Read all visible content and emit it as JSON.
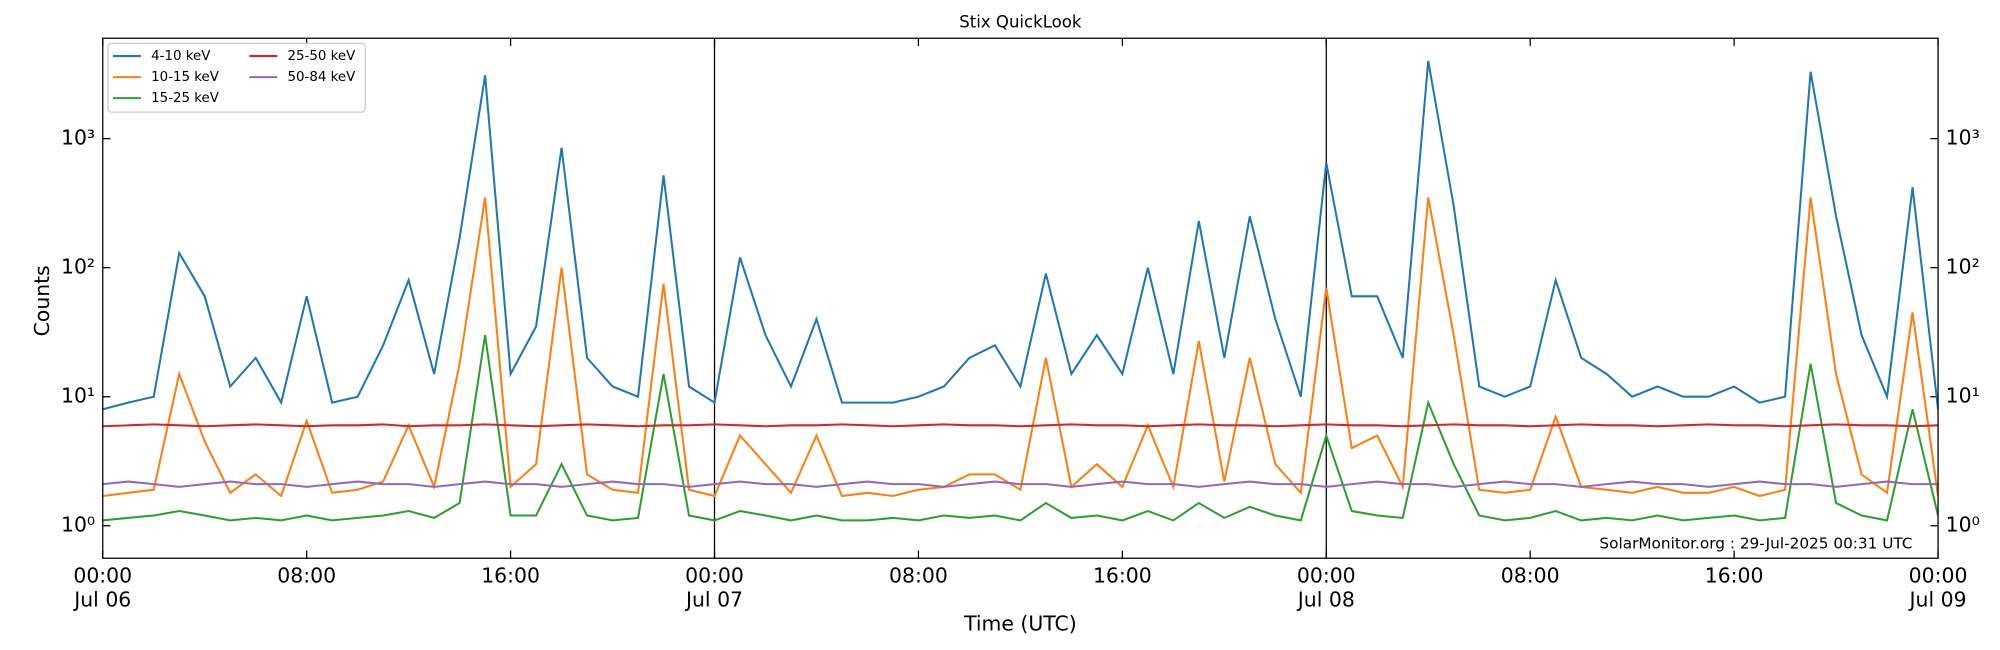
{
  "chart_data": {
    "type": "line",
    "title": "Stix QuickLook",
    "xlabel": "Time (UTC)",
    "ylabel": "Counts",
    "annotation": "SolarMonitor.org : 29-Jul-2025 00:31 UTC",
    "log_y": true,
    "grid": false,
    "legend": "upper left",
    "legend_columns": 2,
    "x": [
      "Jul 06 00:00",
      "Jul 06 01:00",
      "Jul 06 02:00",
      "Jul 06 03:00",
      "Jul 06 04:00",
      "Jul 06 05:00",
      "Jul 06 06:00",
      "Jul 06 07:00",
      "Jul 06 08:00",
      "Jul 06 09:00",
      "Jul 06 10:00",
      "Jul 06 11:00",
      "Jul 06 12:00",
      "Jul 06 13:00",
      "Jul 06 14:00",
      "Jul 06 15:00",
      "Jul 06 16:00",
      "Jul 06 17:00",
      "Jul 06 18:00",
      "Jul 06 19:00",
      "Jul 06 20:00",
      "Jul 06 21:00",
      "Jul 06 22:00",
      "Jul 06 23:00",
      "Jul 07 00:00",
      "Jul 07 01:00",
      "Jul 07 02:00",
      "Jul 07 03:00",
      "Jul 07 04:00",
      "Jul 07 05:00",
      "Jul 07 06:00",
      "Jul 07 07:00",
      "Jul 07 08:00",
      "Jul 07 09:00",
      "Jul 07 10:00",
      "Jul 07 11:00",
      "Jul 07 12:00",
      "Jul 07 13:00",
      "Jul 07 14:00",
      "Jul 07 15:00",
      "Jul 07 16:00",
      "Jul 07 17:00",
      "Jul 07 18:00",
      "Jul 07 19:00",
      "Jul 07 20:00",
      "Jul 07 21:00",
      "Jul 07 22:00",
      "Jul 07 23:00",
      "Jul 08 00:00",
      "Jul 08 01:00",
      "Jul 08 02:00",
      "Jul 08 03:00",
      "Jul 08 04:00",
      "Jul 08 05:00",
      "Jul 08 06:00",
      "Jul 08 07:00",
      "Jul 08 08:00",
      "Jul 08 09:00",
      "Jul 08 10:00",
      "Jul 08 11:00",
      "Jul 08 12:00",
      "Jul 08 13:00",
      "Jul 08 14:00",
      "Jul 08 15:00",
      "Jul 08 16:00",
      "Jul 08 17:00",
      "Jul 08 18:00",
      "Jul 08 19:00",
      "Jul 08 20:00",
      "Jul 08 21:00",
      "Jul 08 22:00",
      "Jul 08 23:00",
      "Jul 09 00:00"
    ],
    "xlim": [
      "Jul 06 00:00",
      "Jul 09 00:00"
    ],
    "xticks": [
      {
        "value": "Jul 06 00:00",
        "label": "00:00\nJul 06"
      },
      {
        "value": "Jul 06 08:00",
        "label": "08:00"
      },
      {
        "value": "Jul 06 16:00",
        "label": "16:00"
      },
      {
        "value": "Jul 07 00:00",
        "label": "00:00\nJul 07"
      },
      {
        "value": "Jul 07 08:00",
        "label": "08:00"
      },
      {
        "value": "Jul 07 16:00",
        "label": "16:00"
      },
      {
        "value": "Jul 08 00:00",
        "label": "00:00\nJul 08"
      },
      {
        "value": "Jul 08 08:00",
        "label": "08:00"
      },
      {
        "value": "Jul 08 16:00",
        "label": "16:00"
      },
      {
        "value": "Jul 09 00:00",
        "label": "00:00\nJul 09"
      }
    ],
    "ylim": [
      0.56,
      6000
    ],
    "yticks": [
      {
        "value": 1,
        "label": "10⁰"
      },
      {
        "value": 10,
        "label": "10¹"
      },
      {
        "value": 100,
        "label": "10²"
      },
      {
        "value": 1000,
        "label": "10³"
      }
    ],
    "series": [
      {
        "name": "4-10 keV",
        "color": "#1f77b4",
        "values": [
          8,
          9,
          10,
          130,
          60,
          12,
          20,
          9,
          60,
          9,
          10,
          25,
          80,
          15,
          170,
          3100,
          15,
          35,
          850,
          20,
          12,
          10,
          520,
          12,
          9,
          120,
          30,
          12,
          40,
          9,
          9,
          9,
          10,
          12,
          20,
          25,
          12,
          90,
          15,
          30,
          15,
          100,
          15,
          230,
          20,
          250,
          40,
          10,
          650,
          60,
          60,
          20,
          4000,
          300,
          12,
          10,
          12,
          80,
          20,
          15,
          10,
          12,
          10,
          10,
          12,
          9,
          10,
          3300,
          250,
          30,
          10,
          420,
          8
        ]
      },
      {
        "name": "10-15 keV",
        "color": "#ff7f0e",
        "values": [
          1.7,
          1.8,
          1.9,
          15,
          4.5,
          1.8,
          2.5,
          1.7,
          6.5,
          1.8,
          1.9,
          2.2,
          6,
          2,
          18,
          350,
          2,
          3,
          100,
          2.5,
          1.9,
          1.8,
          75,
          1.9,
          1.7,
          5,
          3,
          1.8,
          5,
          1.7,
          1.8,
          1.7,
          1.9,
          2,
          2.5,
          2.5,
          1.9,
          20,
          2,
          3,
          2,
          6,
          2,
          27,
          2.2,
          20,
          3,
          1.8,
          70,
          4,
          5,
          2,
          350,
          30,
          1.9,
          1.8,
          1.9,
          7,
          2,
          1.9,
          1.8,
          2,
          1.8,
          1.8,
          2,
          1.7,
          1.9,
          350,
          15,
          2.5,
          1.8,
          45,
          1.7
        ]
      },
      {
        "name": "15-25 keV",
        "color": "#2ca02c",
        "values": [
          1.1,
          1.15,
          1.2,
          1.3,
          1.2,
          1.1,
          1.15,
          1.1,
          1.2,
          1.1,
          1.15,
          1.2,
          1.3,
          1.15,
          1.5,
          30,
          1.2,
          1.2,
          3,
          1.2,
          1.1,
          1.15,
          15,
          1.2,
          1.1,
          1.3,
          1.2,
          1.1,
          1.2,
          1.1,
          1.1,
          1.15,
          1.1,
          1.2,
          1.15,
          1.2,
          1.1,
          1.5,
          1.15,
          1.2,
          1.1,
          1.3,
          1.1,
          1.5,
          1.15,
          1.4,
          1.2,
          1.1,
          5,
          1.3,
          1.2,
          1.15,
          9,
          3,
          1.2,
          1.1,
          1.15,
          1.3,
          1.1,
          1.15,
          1.1,
          1.2,
          1.1,
          1.15,
          1.2,
          1.1,
          1.15,
          18,
          1.5,
          1.2,
          1.1,
          8,
          1.2
        ]
      },
      {
        "name": "25-50 keV",
        "color": "#d62728",
        "values": [
          5.9,
          6,
          6.1,
          6,
          5.9,
          6,
          6.1,
          6,
          5.9,
          6,
          6,
          6.1,
          5.9,
          6,
          6,
          6.1,
          6,
          5.9,
          6,
          6.1,
          6,
          5.9,
          6,
          6,
          6.1,
          6,
          5.9,
          6,
          6,
          6.1,
          6,
          5.9,
          6,
          6.1,
          6,
          6,
          5.9,
          6,
          6.1,
          6,
          6,
          5.9,
          6,
          6.1,
          6,
          6,
          5.9,
          6,
          6.1,
          6,
          6,
          5.9,
          6,
          6.1,
          6,
          6,
          5.9,
          6,
          6.1,
          6,
          6,
          5.9,
          6,
          6.1,
          6,
          6,
          5.9,
          6,
          6.1,
          6,
          6,
          5.9,
          6
        ]
      },
      {
        "name": "50-84 keV",
        "color": "#9467bd",
        "values": [
          2.1,
          2.2,
          2.1,
          2,
          2.1,
          2.2,
          2.1,
          2.1,
          2,
          2.1,
          2.2,
          2.1,
          2.1,
          2,
          2.1,
          2.2,
          2.1,
          2.1,
          2,
          2.1,
          2.2,
          2.1,
          2.1,
          2,
          2.1,
          2.2,
          2.1,
          2.1,
          2,
          2.1,
          2.2,
          2.1,
          2.1,
          2,
          2.1,
          2.2,
          2.1,
          2.1,
          2,
          2.1,
          2.2,
          2.1,
          2.1,
          2,
          2.1,
          2.2,
          2.1,
          2.1,
          2,
          2.1,
          2.2,
          2.1,
          2.1,
          2,
          2.1,
          2.2,
          2.1,
          2.1,
          2,
          2.1,
          2.2,
          2.1,
          2.1,
          2,
          2.1,
          2.2,
          2.1,
          2.1,
          2,
          2.1,
          2.2,
          2.1,
          2.1
        ]
      }
    ]
  }
}
